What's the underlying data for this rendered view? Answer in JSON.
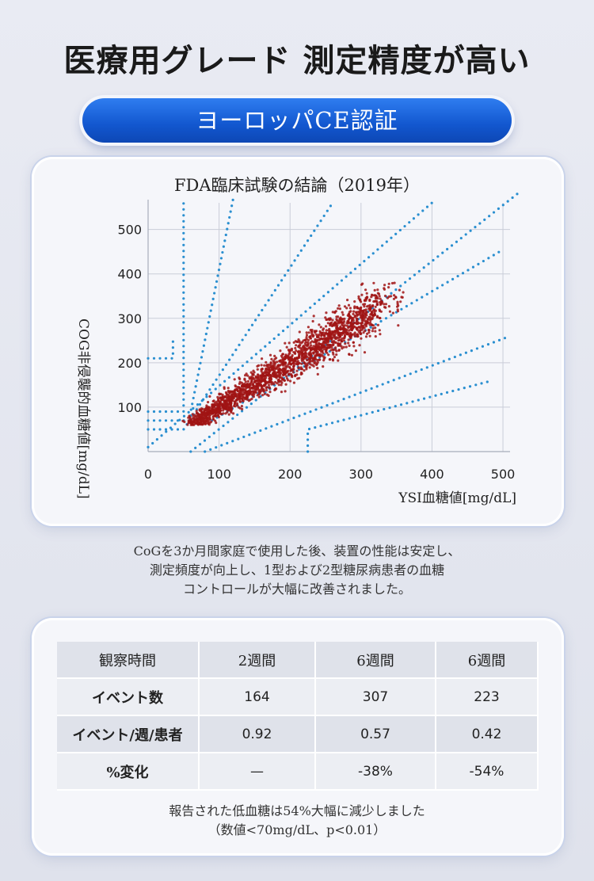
{
  "headline": "医療用グレード 測定精度が高い",
  "badge": "ヨーロッパCE認証",
  "chart_data": {
    "type": "scatter",
    "title": "FDA臨床試験の結論（2019年）",
    "xlabel": "YSI血糖値[mg/dL]",
    "ylabel": "COG非侵襲的血糖値[mg/dL]",
    "xlim": [
      0,
      510
    ],
    "ylim": [
      0,
      560
    ],
    "x_ticks": [
      0,
      100,
      200,
      300,
      400,
      500
    ],
    "y_ticks": [
      100,
      200,
      300,
      400,
      500
    ],
    "grid": true,
    "point_color": "#a01414",
    "zone_line_color": "#2a8fd0",
    "scatter_summary": {
      "n_points_approx": 2000,
      "x_range": [
        40,
        360
      ],
      "y_range": [
        60,
        380
      ],
      "trend": "y ≈ x"
    },
    "zone_lines": [
      {
        "points": [
          [
            0,
            210
          ],
          [
            35,
            210
          ],
          [
            35,
            260
          ]
        ]
      },
      {
        "points": [
          [
            0,
            90
          ],
          [
            50,
            90
          ],
          [
            50,
            560
          ]
        ]
      },
      {
        "points": [
          [
            0,
            70
          ],
          [
            60,
            70
          ],
          [
            60,
            90
          ],
          [
            120,
            570
          ]
        ]
      },
      {
        "points": [
          [
            0,
            50
          ],
          [
            50,
            50
          ],
          [
            260,
            560
          ]
        ]
      },
      {
        "points": [
          [
            0,
            10
          ],
          [
            400,
            560
          ]
        ]
      },
      {
        "points": [
          [
            60,
            0
          ],
          [
            520,
            580
          ]
        ]
      },
      {
        "points": [
          [
            90,
            70
          ],
          [
            495,
            450
          ]
        ]
      },
      {
        "points": [
          [
            80,
            0
          ],
          [
            510,
            260
          ]
        ]
      },
      {
        "points": [
          [
            225,
            0
          ],
          [
            225,
            50
          ],
          [
            485,
            160
          ]
        ]
      }
    ]
  },
  "caption_lines": [
    "CoGを3か月間家庭で使用した後、装置の性能は安定し、",
    "測定頻度が向上し、1型および2型糖尿病患者の血糖",
    "コントロールが大幅に改善されました。"
  ],
  "table": {
    "headers": [
      "観察時間",
      "2週間",
      "6週間",
      "6週間"
    ],
    "rows": [
      {
        "label": "イベント数",
        "values": [
          "164",
          "307",
          "223"
        ]
      },
      {
        "label": "イベント/週/患者",
        "values": [
          "0.92",
          "0.57",
          "0.42"
        ]
      },
      {
        "label": "%変化",
        "values": [
          "—",
          "-38%",
          "-54%"
        ]
      }
    ]
  },
  "footer_lines": [
    "報告された低血糖は54%大幅に減少しました",
    "（数値<70mg/dL、p<0.01）"
  ]
}
